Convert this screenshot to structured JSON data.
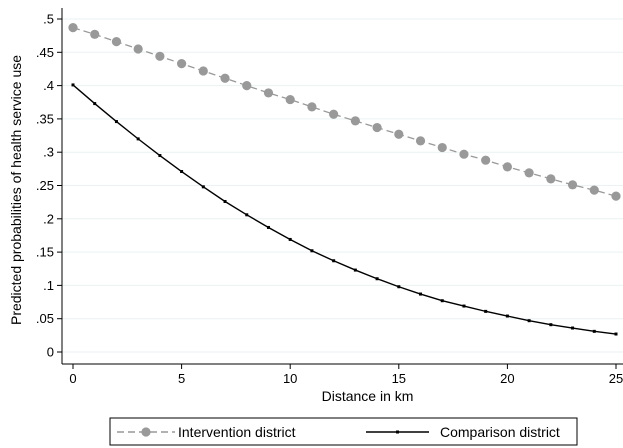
{
  "chart_data": {
    "type": "line",
    "xlabel": "Distance in km",
    "ylabel": "Predicted probabilities of health service use",
    "xlim": [
      0,
      25
    ],
    "ylim": [
      0,
      0.5
    ],
    "x_ticks": [
      0,
      5,
      10,
      15,
      20,
      25
    ],
    "x_tick_labels": [
      "0",
      "5",
      "10",
      "15",
      "20",
      "25"
    ],
    "y_ticks": [
      0,
      0.05,
      0.1,
      0.15,
      0.2,
      0.25,
      0.3,
      0.35,
      0.4,
      0.45,
      0.5
    ],
    "y_tick_labels": [
      "0",
      ".05",
      ".1",
      ".15",
      ".2",
      ".25",
      ".3",
      ".35",
      ".4",
      ".45",
      ".5"
    ],
    "grid": "horizontal",
    "legend_position": "bottom",
    "x": [
      0,
      1,
      2,
      3,
      4,
      5,
      6,
      7,
      8,
      9,
      10,
      11,
      12,
      13,
      14,
      15,
      16,
      17,
      18,
      19,
      20,
      21,
      22,
      23,
      24,
      25
    ],
    "series": [
      {
        "name": "Intervention district",
        "color": "#999999",
        "line_style": "dashed",
        "marker": "circle",
        "values": [
          0.487,
          0.477,
          0.466,
          0.455,
          0.444,
          0.433,
          0.422,
          0.411,
          0.4,
          0.389,
          0.379,
          0.368,
          0.357,
          0.347,
          0.337,
          0.327,
          0.317,
          0.307,
          0.297,
          0.288,
          0.278,
          0.269,
          0.26,
          0.251,
          0.243,
          0.234
        ]
      },
      {
        "name": "Comparison district",
        "color": "#000000",
        "line_style": "solid",
        "marker": "small-square",
        "values": [
          0.401,
          0.373,
          0.346,
          0.32,
          0.295,
          0.271,
          0.248,
          0.226,
          0.206,
          0.187,
          0.169,
          0.152,
          0.137,
          0.123,
          0.11,
          0.098,
          0.087,
          0.077,
          0.069,
          0.061,
          0.054,
          0.047,
          0.041,
          0.036,
          0.031,
          0.027
        ]
      }
    ]
  }
}
